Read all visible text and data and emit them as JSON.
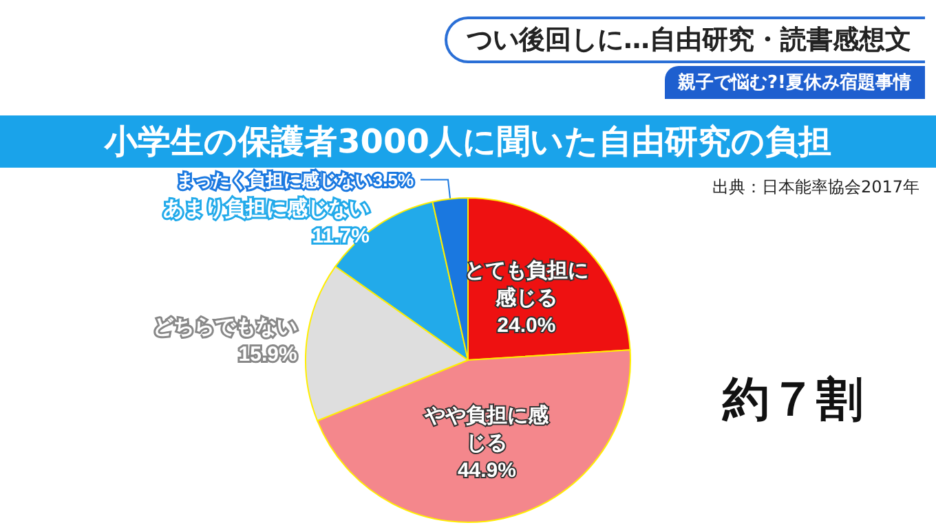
{
  "chart_data": {
    "type": "pie",
    "title": "小学生の保護者3000人に聞いた自由研究の負担",
    "subtitle": "親子で悩む?!夏休み宿題事情",
    "annotations": [
      "つい後回しに…自由研究・読書感想文",
      "出典：日本能率協会2017年",
      "約７割"
    ],
    "categories": [
      "とても負担に感じる",
      "やや負担に感じる",
      "どちらでもない",
      "あまり負担に感じない",
      "まったく負担に感じない"
    ],
    "values": [
      24.0,
      44.9,
      15.9,
      11.7,
      3.5
    ],
    "value_labels": [
      "24.0%",
      "44.9%",
      "15.9%",
      "11.7%",
      "3.5%"
    ],
    "colors": [
      "#ee1111",
      "#f4878c",
      "#dedede",
      "#22aaea",
      "#1a78e0"
    ],
    "legend": false
  }
}
